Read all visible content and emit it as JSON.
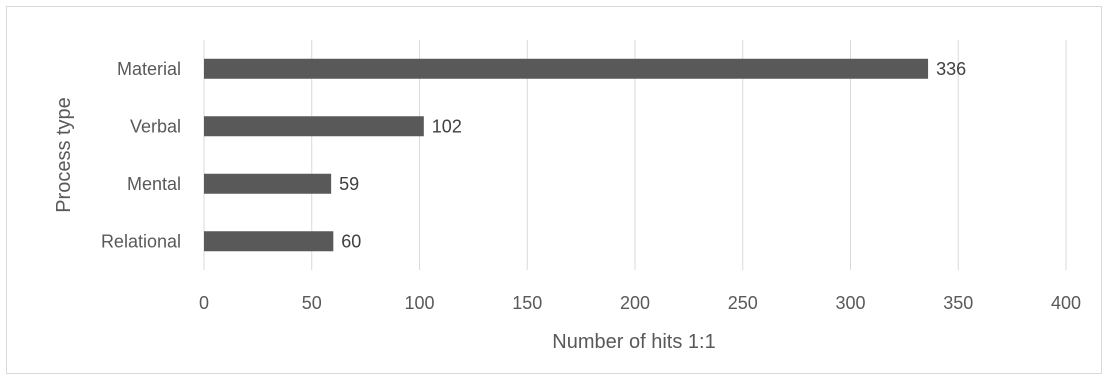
{
  "chart_data": {
    "type": "bar",
    "orientation": "horizontal",
    "title": "",
    "xlabel": "Number of hits 1:1",
    "ylabel": "Process type",
    "categories": [
      "Material",
      "Verbal",
      "Mental",
      "Relational"
    ],
    "values": [
      336,
      102,
      59,
      60
    ],
    "xlim": [
      0,
      400
    ],
    "xticks": [
      0,
      50,
      100,
      150,
      200,
      250,
      300,
      350,
      400
    ],
    "grid": "vertical",
    "legend": "none",
    "bar_color": "#595959",
    "grid_color": "#d9d9d9"
  }
}
